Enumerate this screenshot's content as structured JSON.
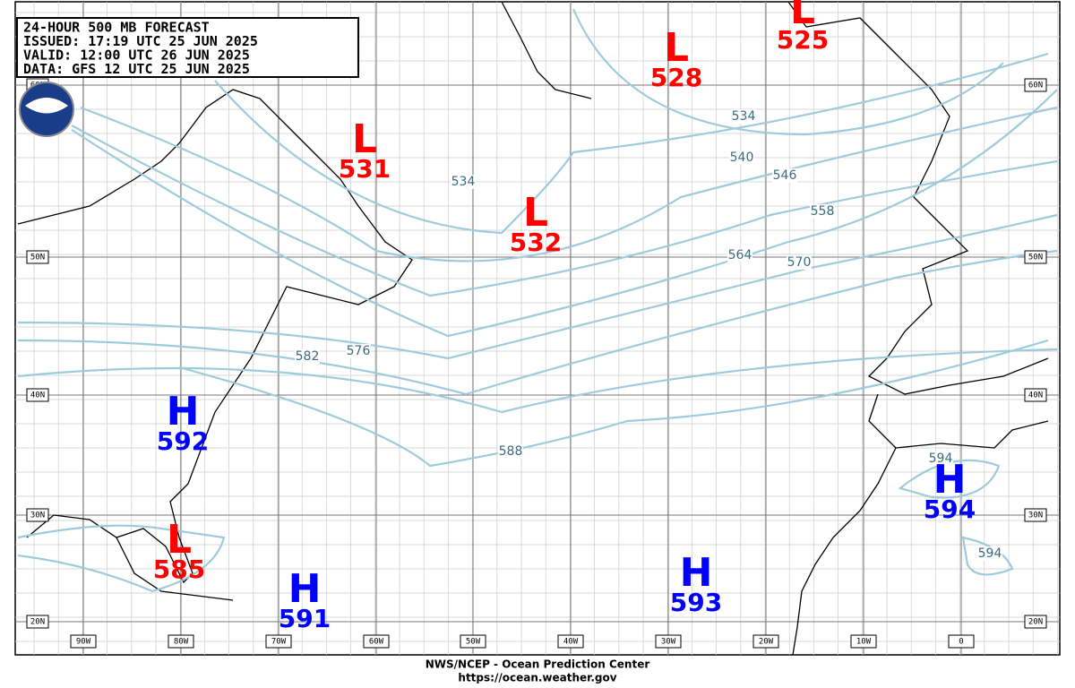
{
  "header": {
    "lines": [
      "24-HOUR 500 MB FORECAST",
      "ISSUED: 17:19 UTC 25 JUN 2025",
      "VALID:  12:00 UTC 26 JUN 2025",
      "DATA:  GFS 12 UTC 25 JUN 2025"
    ]
  },
  "centers": [
    {
      "type": "L",
      "value": "525"
    },
    {
      "type": "L",
      "value": "528"
    },
    {
      "type": "L",
      "value": "531"
    },
    {
      "type": "L",
      "value": "532"
    },
    {
      "type": "H",
      "value": "592"
    },
    {
      "type": "L",
      "value": "585"
    },
    {
      "type": "H",
      "value": "591"
    },
    {
      "type": "H",
      "value": "593"
    },
    {
      "type": "H",
      "value": "594"
    }
  ],
  "contour_labels": [
    "534",
    "540",
    "546",
    "558",
    "564",
    "570",
    "576",
    "582",
    "588",
    "594",
    "594",
    "534"
  ],
  "lat_labels": [
    "60N",
    "50N",
    "40N",
    "30N",
    "20N"
  ],
  "lon_labels": [
    "90W",
    "80W",
    "70W",
    "60W",
    "50W",
    "40W",
    "30W",
    "20W",
    "10W",
    "0"
  ],
  "footer": [
    "NWS/NCEP - Ocean Prediction Center",
    "https://ocean.weather.gov"
  ]
}
